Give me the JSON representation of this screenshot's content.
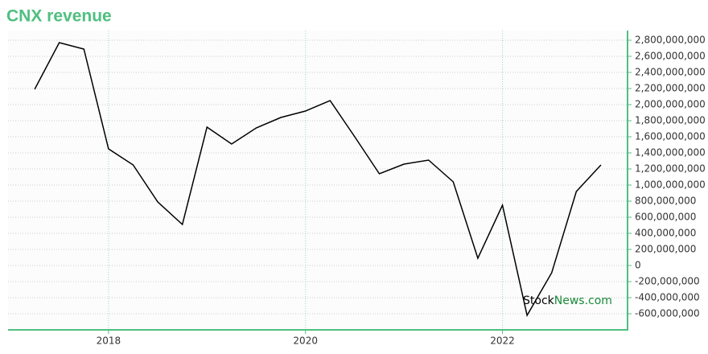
{
  "chart_data": {
    "type": "line",
    "title": "CNX revenue",
    "x": [
      2017.25,
      2017.5,
      2017.75,
      2018.0,
      2018.25,
      2018.5,
      2018.75,
      2019.0,
      2019.25,
      2019.5,
      2019.75,
      2020.0,
      2020.25,
      2020.5,
      2020.75,
      2021.0,
      2021.25,
      2021.5,
      2021.75,
      2022.0,
      2022.25,
      2022.5,
      2022.75,
      2023.0
    ],
    "series": [
      {
        "color": "#000000",
        "values": [
          2190000000,
          2770000000,
          2690000000,
          1450000000,
          1250000000,
          790000000,
          510000000,
          1720000000,
          1510000000,
          1710000000,
          1840000000,
          1920000000,
          2050000000,
          1600000000,
          1140000000,
          1260000000,
          1310000000,
          1040000000,
          90000000,
          750000000,
          -620000000,
          -90000000,
          920000000,
          1250000000
        ]
      }
    ],
    "xlim": [
      2016.98,
      2023.27
    ],
    "xticks": [
      2018,
      2020,
      2022
    ],
    "ylim": [
      -800000000,
      2920000000
    ],
    "yticks": [
      {
        "value": -600000000,
        "label": "-600,000,000"
      },
      {
        "value": -400000000,
        "label": "-400,000,000"
      },
      {
        "value": -200000000,
        "label": "-200,000,000"
      },
      0,
      {
        "value": 200000000,
        "label": "200,000,000"
      },
      {
        "value": 400000000,
        "label": "400,000,000"
      },
      {
        "value": 600000000,
        "label": "600,000,000"
      },
      {
        "value": 800000000,
        "label": "800,000,000"
      },
      {
        "value": 1000000000,
        "label": "1,000,000,000"
      },
      {
        "value": 1200000000,
        "label": "1,200,000,000"
      },
      {
        "value": 1400000000,
        "label": "1,400,000,000"
      },
      {
        "value": 1600000000,
        "label": "1,600,000,000"
      },
      {
        "value": 1800000000,
        "label": "1,800,000,000"
      },
      {
        "value": 2000000000,
        "label": "2,000,000,000"
      },
      {
        "value": 2200000000,
        "label": "2,200,000,000"
      },
      {
        "value": 2400000000,
        "label": "2,400,000,000"
      },
      {
        "value": 2600000000,
        "label": "2,600,000,000"
      },
      {
        "value": 2800000000,
        "label": "2,800,000,000"
      }
    ],
    "grid": true,
    "axis_color": "#4fbf7f",
    "watermark": [
      "Stock",
      "News.com"
    ]
  }
}
